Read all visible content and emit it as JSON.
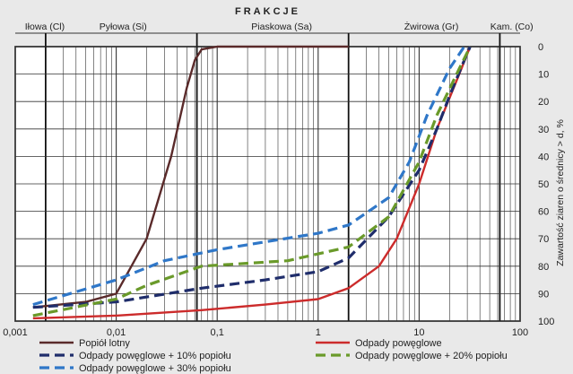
{
  "chart_data": {
    "type": "line",
    "title": "FRAKCJE",
    "fractions": [
      "Iłowa (Cl)",
      "Pyłowa (Si)",
      "Piaskowa (Sa)",
      "Żwirowa (Gr)",
      "Kam. (Co)"
    ],
    "x_tick_labels": [
      "0,001",
      "0,01",
      "0,1",
      "1",
      "10",
      "100"
    ],
    "x_scale": "log",
    "xlim": [
      0.001,
      100
    ],
    "y_ticks": [
      0,
      10,
      20,
      30,
      40,
      50,
      60,
      70,
      80,
      90,
      100
    ],
    "ylim": [
      0,
      100
    ],
    "y_inverted": true,
    "ylabel": "Zawartość ziaren  o średnicy > d, %",
    "grid": true,
    "legend_position": "bottom",
    "series": [
      {
        "name": "Popiół lotny",
        "color": "#5a2a2a",
        "style": "solid",
        "points": [
          [
            0.0015,
            95
          ],
          [
            0.005,
            93
          ],
          [
            0.01,
            90
          ],
          [
            0.02,
            70
          ],
          [
            0.035,
            40
          ],
          [
            0.05,
            15
          ],
          [
            0.06,
            5
          ],
          [
            0.07,
            1
          ],
          [
            0.1,
            0
          ],
          [
            2,
            0
          ]
        ]
      },
      {
        "name": "Odpady powęglowe",
        "color": "#cc2b2b",
        "style": "solid",
        "points": [
          [
            0.0015,
            99
          ],
          [
            0.01,
            98
          ],
          [
            0.07,
            96
          ],
          [
            0.3,
            94
          ],
          [
            1,
            92
          ],
          [
            2,
            88
          ],
          [
            4,
            80
          ],
          [
            6,
            70
          ],
          [
            10,
            50
          ],
          [
            15,
            30
          ],
          [
            25,
            10
          ],
          [
            32,
            0
          ]
        ]
      },
      {
        "name": "Odpady powęglowe + 10% popiołu",
        "color": "#1f2d6b",
        "style": "dashed",
        "points": [
          [
            0.0015,
            95
          ],
          [
            0.01,
            93
          ],
          [
            0.07,
            88
          ],
          [
            0.3,
            85
          ],
          [
            1,
            82
          ],
          [
            2,
            77
          ],
          [
            5,
            62
          ],
          [
            10,
            45
          ],
          [
            15,
            30
          ],
          [
            20,
            18
          ],
          [
            28,
            5
          ],
          [
            32,
            0
          ]
        ]
      },
      {
        "name": "Odpady powęglowe + 20% popiołu",
        "color": "#6a9a2a",
        "style": "dashed",
        "points": [
          [
            0.0015,
            98
          ],
          [
            0.01,
            92
          ],
          [
            0.02,
            87
          ],
          [
            0.07,
            80
          ],
          [
            0.5,
            78
          ],
          [
            2,
            73
          ],
          [
            5,
            62
          ],
          [
            10,
            42
          ],
          [
            15,
            25
          ],
          [
            25,
            8
          ],
          [
            32,
            0
          ]
        ]
      },
      {
        "name": "Odpady powęglowe + 30% popiołu",
        "color": "#2f77c8",
        "style": "dashed",
        "points": [
          [
            0.0015,
            94
          ],
          [
            0.01,
            85
          ],
          [
            0.03,
            78
          ],
          [
            0.1,
            74
          ],
          [
            1,
            68
          ],
          [
            2,
            65
          ],
          [
            5,
            55
          ],
          [
            8,
            42
          ],
          [
            12,
            25
          ],
          [
            20,
            8
          ],
          [
            28,
            0
          ]
        ]
      }
    ]
  }
}
